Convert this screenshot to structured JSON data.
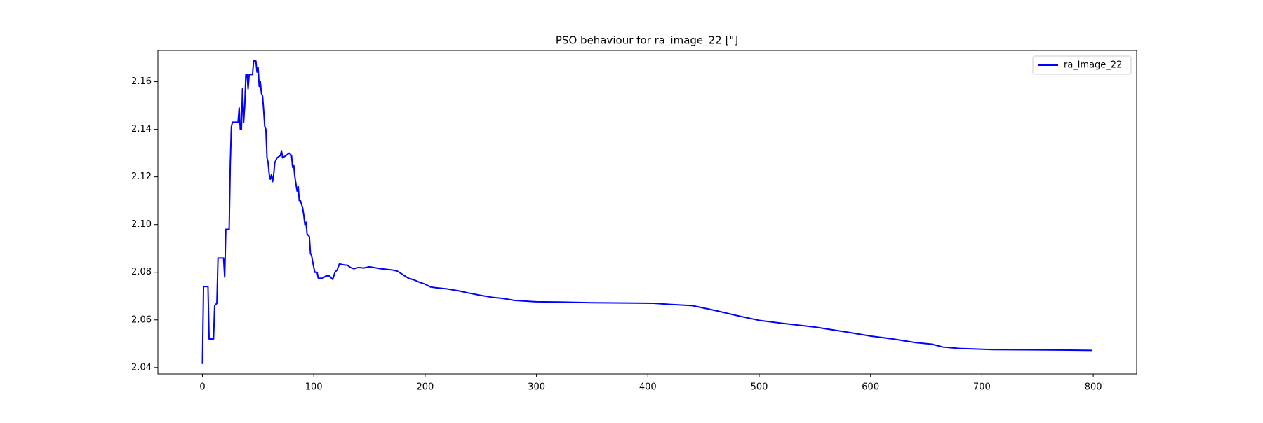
{
  "chart_data": {
    "type": "line",
    "title": "PSO behaviour for ra_image_22 [\"]",
    "x": [
      0,
      1,
      5,
      6,
      10,
      11,
      13,
      14,
      19,
      20,
      21,
      24,
      25,
      26,
      27,
      32,
      33,
      34,
      35,
      36,
      37,
      38,
      39,
      40,
      41,
      42,
      45,
      46,
      48,
      49,
      50,
      51,
      52,
      53,
      54,
      55,
      56,
      57,
      58,
      59,
      60,
      61,
      62,
      63,
      64,
      65,
      67,
      70,
      71,
      72,
      75,
      78,
      80,
      81,
      82,
      83,
      84,
      85,
      86,
      87,
      88,
      90,
      91,
      92,
      93,
      94,
      96,
      97,
      98,
      100,
      101,
      103,
      104,
      108,
      111,
      114,
      117,
      119,
      121,
      123,
      128,
      130,
      133,
      136,
      140,
      145,
      150,
      160,
      170,
      175,
      180,
      185,
      190,
      195,
      200,
      205,
      210,
      220,
      230,
      240,
      250,
      260,
      270,
      280,
      300,
      320,
      350,
      380,
      405,
      420,
      440,
      460,
      480,
      500,
      520,
      550,
      580,
      600,
      620,
      640,
      655,
      665,
      680,
      710,
      750,
      799
    ],
    "series": [
      {
        "name": "ra_image_22",
        "color": "#0000ff",
        "values": [
          2.0415,
          2.074,
          2.074,
          2.052,
          2.052,
          2.066,
          2.067,
          2.086,
          2.086,
          2.078,
          2.098,
          2.098,
          2.125,
          2.141,
          2.143,
          2.143,
          2.149,
          2.14,
          2.14,
          2.157,
          2.143,
          2.15,
          2.163,
          2.163,
          2.157,
          2.163,
          2.163,
          2.1687,
          2.1687,
          2.164,
          2.166,
          2.158,
          2.16,
          2.155,
          2.154,
          2.148,
          2.141,
          2.14,
          2.128,
          2.126,
          2.121,
          2.119,
          2.121,
          2.118,
          2.121,
          2.126,
          2.128,
          2.129,
          2.131,
          2.128,
          2.129,
          2.13,
          2.129,
          2.124,
          2.125,
          2.12,
          2.117,
          2.114,
          2.116,
          2.11,
          2.11,
          2.107,
          2.104,
          2.1,
          2.101,
          2.096,
          2.095,
          2.088,
          2.087,
          2.082,
          2.08,
          2.08,
          2.0775,
          2.0775,
          2.0785,
          2.0785,
          2.077,
          2.08,
          2.081,
          2.0835,
          2.083,
          2.083,
          2.082,
          2.0815,
          2.082,
          2.0818,
          2.0823,
          2.0815,
          2.081,
          2.0805,
          2.079,
          2.0775,
          2.0768,
          2.0758,
          2.075,
          2.0738,
          2.0735,
          2.073,
          2.0722,
          2.0712,
          2.0703,
          2.0695,
          2.069,
          2.0682,
          2.0676,
          2.0675,
          2.0672,
          2.0671,
          2.067,
          2.0665,
          2.066,
          2.064,
          2.0618,
          2.0598,
          2.0586,
          2.057,
          2.0548,
          2.0532,
          2.052,
          2.0505,
          2.0498,
          2.0486,
          2.048,
          2.0475,
          2.0474,
          2.0472
        ]
      }
    ],
    "xlim": [
      -40,
      839
    ],
    "xticks": [
      0,
      100,
      200,
      300,
      400,
      500,
      600,
      700,
      800
    ],
    "ylim": [
      2.0373,
      2.1731
    ],
    "yticks": [
      2.04,
      2.06,
      2.08,
      {
        "value": 2.1,
        "label": "2.10"
      },
      2.12,
      2.14,
      2.16
    ],
    "legend": "upper right"
  }
}
